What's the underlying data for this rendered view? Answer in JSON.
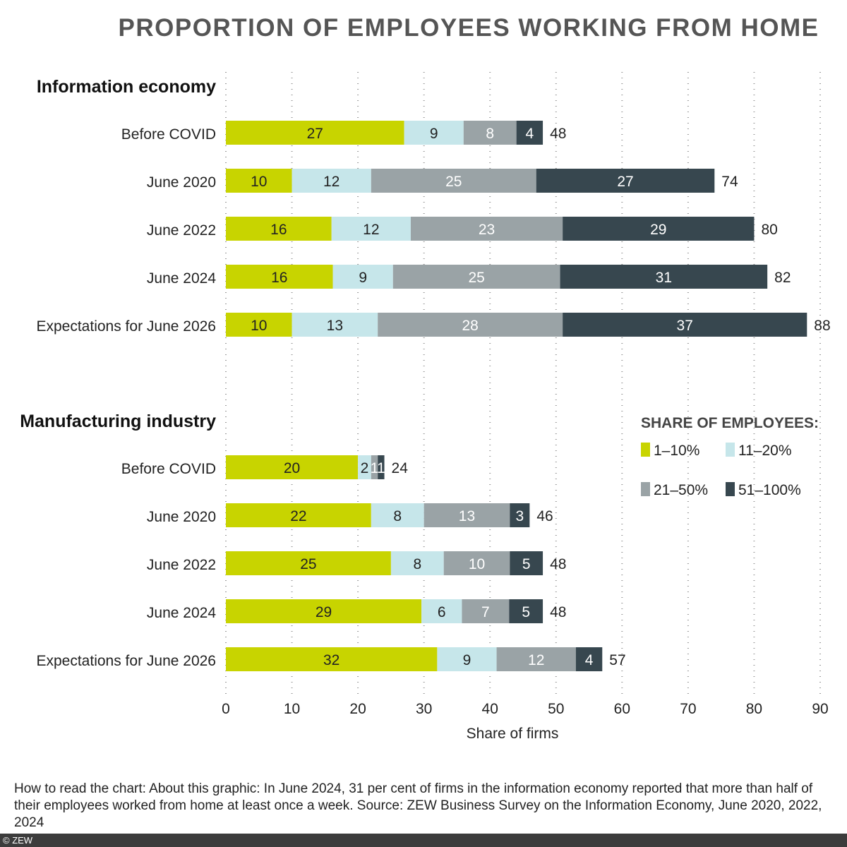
{
  "chart_data": {
    "type": "bar",
    "orientation": "horizontal",
    "stacked": true,
    "title": "PROPORTION OF EMPLOYEES WORKING FROM HOME",
    "xlabel": "Share of firms",
    "xlim": [
      0,
      90
    ],
    "xticks": [
      0,
      10,
      20,
      30,
      40,
      50,
      60,
      70,
      80,
      90
    ],
    "grid": "vertical dotted",
    "legend": {
      "title": "SHARE OF EMPLOYEES:",
      "placement": "right",
      "entries": [
        "1–10%",
        "11–20%",
        "21–50%",
        "51–100%"
      ]
    },
    "colors": [
      "#c8d400",
      "#c6e6ea",
      "#9aa3a6",
      "#37474f"
    ],
    "groups": [
      {
        "name": "Information economy",
        "categories": [
          "Before COVID",
          "June 2020",
          "June 2022",
          "June 2024",
          "Expectations for June 2026"
        ],
        "series": [
          {
            "name": "1–10%",
            "values": [
              27,
              10,
              16,
              16,
              10
            ]
          },
          {
            "name": "11–20%",
            "values": [
              9,
              12,
              12,
              9,
              13
            ]
          },
          {
            "name": "21–50%",
            "values": [
              8,
              25,
              23,
              25,
              28
            ]
          },
          {
            "name": "51–100%",
            "values": [
              4,
              27,
              29,
              31,
              37
            ]
          }
        ],
        "totals": [
          48,
          74,
          80,
          82,
          88
        ]
      },
      {
        "name": "Manufacturing industry",
        "categories": [
          "Before COVID",
          "June 2020",
          "June 2022",
          "June 2024",
          "Expectations for June 2026"
        ],
        "series": [
          {
            "name": "1–10%",
            "values": [
              20,
              22,
              25,
              29,
              32
            ]
          },
          {
            "name": "11–20%",
            "values": [
              2,
              8,
              8,
              6,
              9
            ]
          },
          {
            "name": "21–50%",
            "values": [
              1,
              13,
              10,
              7,
              12
            ]
          },
          {
            "name": "51–100%",
            "values": [
              1,
              3,
              5,
              5,
              4
            ]
          }
        ],
        "totals": [
          24,
          46,
          48,
          48,
          57
        ]
      }
    ]
  },
  "footnote": "How to read the chart: About this graphic: In June 2024, 31 per cent of firms in the information economy reported that more than half of their employees worked from home at least once a week. Source: ZEW Business Survey on the Information Economy, June 2020, 2022, 2024",
  "copyright": "© ZEW"
}
